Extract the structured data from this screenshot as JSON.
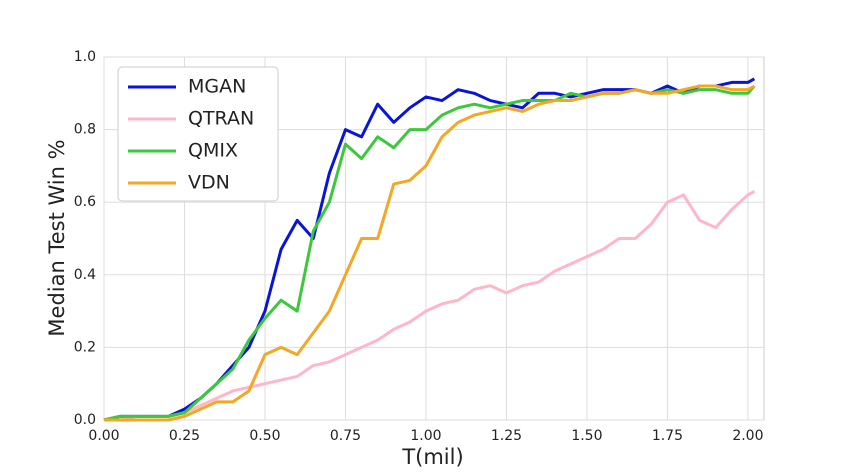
{
  "chart_data": {
    "type": "line",
    "x_label": "T(mil)",
    "y_label": "Median Test Win %",
    "x": [
      0,
      0.05,
      0.1,
      0.15,
      0.2,
      0.25,
      0.3,
      0.35,
      0.4,
      0.45,
      0.5,
      0.55,
      0.6,
      0.65,
      0.7,
      0.75,
      0.8,
      0.85,
      0.9,
      0.95,
      1.0,
      1.05,
      1.1,
      1.15,
      1.2,
      1.25,
      1.3,
      1.35,
      1.4,
      1.45,
      1.5,
      1.55,
      1.6,
      1.65,
      1.7,
      1.75,
      1.8,
      1.85,
      1.9,
      1.95,
      2.0,
      2.02
    ],
    "series": [
      {
        "name": "MGAN",
        "color": "#0a14d8",
        "values": [
          0,
          0.01,
          0.01,
          0.01,
          0.01,
          0.03,
          0.06,
          0.1,
          0.15,
          0.2,
          0.3,
          0.47,
          0.55,
          0.5,
          0.68,
          0.8,
          0.78,
          0.87,
          0.82,
          0.86,
          0.89,
          0.88,
          0.91,
          0.9,
          0.88,
          0.87,
          0.86,
          0.9,
          0.9,
          0.89,
          0.9,
          0.91,
          0.91,
          0.91,
          0.9,
          0.92,
          0.9,
          0.92,
          0.92,
          0.93,
          0.93,
          0.94
        ]
      },
      {
        "name": "QTRAN",
        "color": "#ffb6c8",
        "values": [
          0,
          0,
          0.01,
          0.01,
          0.01,
          0.02,
          0.04,
          0.06,
          0.08,
          0.09,
          0.1,
          0.11,
          0.12,
          0.15,
          0.16,
          0.18,
          0.2,
          0.22,
          0.25,
          0.27,
          0.3,
          0.32,
          0.33,
          0.36,
          0.37,
          0.35,
          0.37,
          0.38,
          0.41,
          0.43,
          0.45,
          0.47,
          0.5,
          0.5,
          0.54,
          0.6,
          0.62,
          0.55,
          0.53,
          0.58,
          0.62,
          0.63
        ]
      },
      {
        "name": "QMIX",
        "color": "#3cc83c",
        "values": [
          0,
          0.01,
          0.01,
          0.01,
          0.01,
          0.02,
          0.06,
          0.1,
          0.14,
          0.22,
          0.28,
          0.33,
          0.3,
          0.52,
          0.6,
          0.76,
          0.72,
          0.78,
          0.75,
          0.8,
          0.8,
          0.84,
          0.86,
          0.87,
          0.86,
          0.87,
          0.88,
          0.88,
          0.88,
          0.9,
          0.89,
          0.9,
          0.9,
          0.91,
          0.9,
          0.91,
          0.9,
          0.91,
          0.91,
          0.9,
          0.9,
          0.92
        ]
      },
      {
        "name": "VDN",
        "color": "#f5a623",
        "values": [
          0,
          0,
          0,
          0,
          0,
          0.01,
          0.03,
          0.05,
          0.05,
          0.08,
          0.18,
          0.2,
          0.18,
          0.24,
          0.3,
          0.4,
          0.5,
          0.5,
          0.65,
          0.66,
          0.7,
          0.78,
          0.82,
          0.84,
          0.85,
          0.86,
          0.85,
          0.87,
          0.88,
          0.88,
          0.89,
          0.9,
          0.9,
          0.91,
          0.9,
          0.9,
          0.91,
          0.92,
          0.92,
          0.91,
          0.91,
          0.92
        ]
      }
    ],
    "xlim": [
      0,
      2.05
    ],
    "ylim": [
      0,
      1
    ],
    "xticks": [
      {
        "value": 0,
        "label": "0.00"
      },
      {
        "value": 0.25,
        "label": "0.25"
      },
      {
        "value": 0.5,
        "label": "0.50"
      },
      {
        "value": 0.75,
        "label": "0.75"
      },
      {
        "value": 1.0,
        "label": "1.00"
      },
      {
        "value": 1.25,
        "label": "1.25"
      },
      {
        "value": 1.5,
        "label": "1.50"
      },
      {
        "value": 1.75,
        "label": "1.75"
      },
      {
        "value": 2.0,
        "label": "2.00"
      }
    ],
    "yticks": [
      {
        "value": 0,
        "label": "0.0"
      },
      {
        "value": 0.2,
        "label": "0.2"
      },
      {
        "value": 0.4,
        "label": "0.4"
      },
      {
        "value": 0.6,
        "label": "0.6"
      },
      {
        "value": 0.8,
        "label": "0.8"
      },
      {
        "value": 1.0,
        "label": "1.0"
      }
    ],
    "grid": true,
    "legend": "upper-left"
  }
}
